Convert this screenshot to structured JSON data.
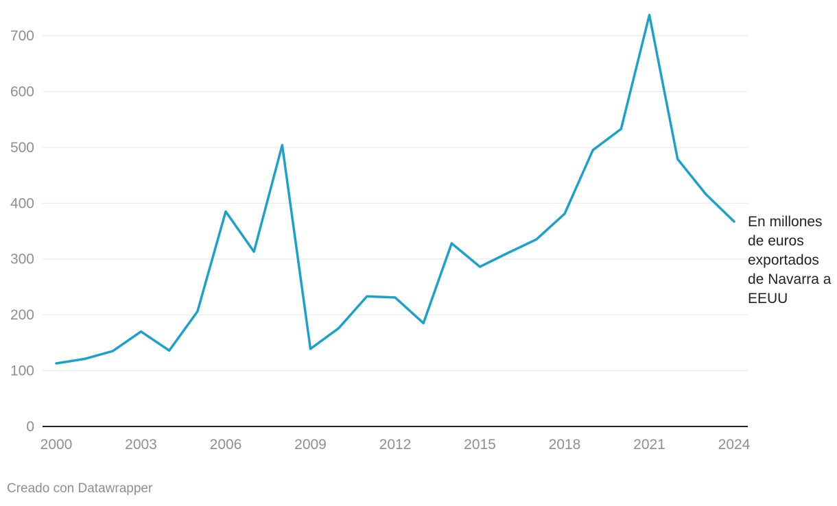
{
  "chart_data": {
    "type": "line",
    "title": "",
    "xlabel": "",
    "ylabel": "",
    "x": [
      2000,
      2001,
      2002,
      2003,
      2004,
      2005,
      2006,
      2007,
      2008,
      2009,
      2010,
      2011,
      2012,
      2013,
      2014,
      2015,
      2016,
      2017,
      2018,
      2019,
      2020,
      2021,
      2022,
      2023,
      2024
    ],
    "series": [
      {
        "name": "En millones de euros exportados de Navarra a EEUU",
        "values": [
          113,
          121,
          135,
          170,
          136,
          206,
          385,
          313,
          504,
          139,
          176,
          233,
          231,
          185,
          328,
          286,
          311,
          335,
          381,
          495,
          533,
          737,
          479,
          416,
          367
        ],
        "color": "#1ca1cc"
      }
    ],
    "xlim": [
      2000,
      2024
    ],
    "ylim": [
      0,
      750
    ],
    "x_ticks": [
      2000,
      2003,
      2006,
      2009,
      2012,
      2015,
      2018,
      2021,
      2024
    ],
    "y_ticks": [
      0,
      100,
      200,
      300,
      400,
      500,
      600,
      700
    ],
    "grid": true,
    "legend": "none (direct label at end of line)"
  },
  "footer": {
    "credit": "Creado con Datawrapper"
  }
}
